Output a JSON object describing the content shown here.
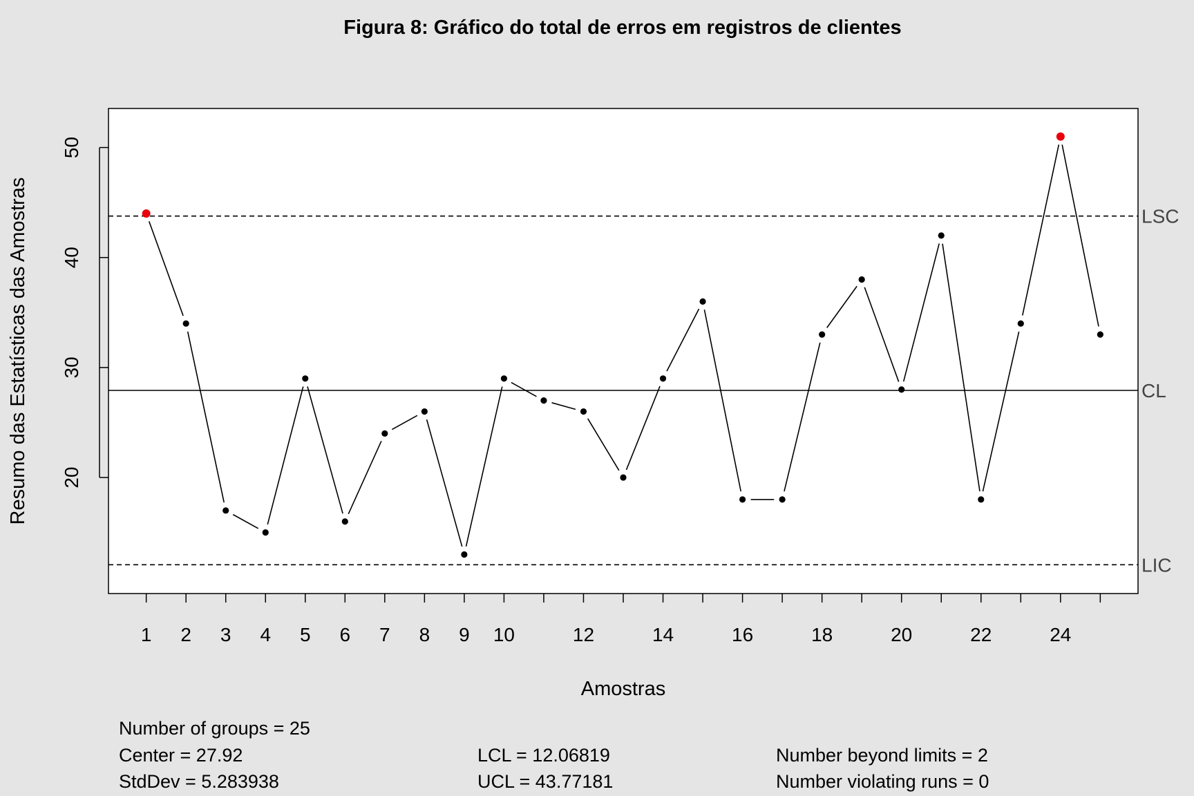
{
  "chart_data": {
    "type": "line",
    "title": "Figura 8: Gráfico do total de erros em registros de clientes",
    "xlabel": "Amostras",
    "ylabel": "Resumo das Estatísticas das Amostras",
    "x": [
      1,
      2,
      3,
      4,
      5,
      6,
      7,
      8,
      9,
      10,
      11,
      12,
      13,
      14,
      15,
      16,
      17,
      18,
      19,
      20,
      21,
      22,
      23,
      24,
      25
    ],
    "values": [
      44,
      34,
      17,
      15,
      29,
      16,
      24,
      26,
      13,
      29,
      27,
      26,
      20,
      29,
      36,
      18,
      18,
      33,
      38,
      28,
      42,
      18,
      34,
      51,
      33
    ],
    "xlim": [
      0.05,
      25.95
    ],
    "ylim": [
      9.45,
      53.55
    ],
    "x_tick_labels": [
      "1",
      "2",
      "3",
      "4",
      "5",
      "6",
      "7",
      "8",
      "9",
      "10",
      "12",
      "14",
      "16",
      "18",
      "20",
      "22",
      "24"
    ],
    "y_ticks": [
      20,
      30,
      40,
      50
    ],
    "grid": false,
    "limits": {
      "center": 27.92,
      "ucl": 43.77181,
      "lcl": 12.06819,
      "labels": {
        "ucl": "LSC",
        "center": "CL",
        "lcl": "LIC"
      }
    },
    "violations": [
      1,
      24
    ]
  },
  "colors": {
    "background": "#e5e5e5",
    "plot_background": "#ffffff",
    "line": "#000000",
    "point": "#000000",
    "violation_point": "#e8000b",
    "limit_label": "#444444"
  },
  "stats": {
    "groups": "Number of groups = 25",
    "center": "Center = 27.92",
    "stddev": "StdDev = 5.283938",
    "lcl": "LCL = 12.06819",
    "ucl": "UCL = 43.77181",
    "beyond": "Number beyond limits = 2",
    "runs": "Number violating runs = 0"
  }
}
